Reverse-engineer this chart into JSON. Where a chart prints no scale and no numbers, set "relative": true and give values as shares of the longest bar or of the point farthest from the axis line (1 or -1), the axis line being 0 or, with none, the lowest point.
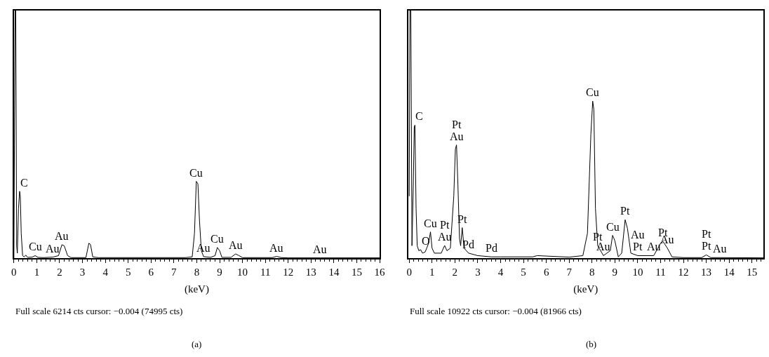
{
  "chart_data": [
    {
      "type": "line",
      "relative": true,
      "xlabel": "(keV)",
      "xlim": [
        0,
        16
      ],
      "xticks": [
        0,
        1,
        2,
        3,
        4,
        5,
        6,
        7,
        8,
        9,
        10,
        11,
        12,
        13,
        14,
        15,
        16
      ],
      "tick_labels": "x",
      "marker": "none",
      "line_style": "solid",
      "series": [
        {
          "color": "#000000",
          "x": [
            0.0,
            0.05,
            0.08,
            0.12,
            0.15,
            0.2,
            0.25,
            0.28,
            0.32,
            0.38,
            0.45,
            0.52,
            0.6,
            0.8,
            0.93,
            1.05,
            1.3,
            1.7,
            1.95,
            2.1,
            2.2,
            2.35,
            2.5,
            3.15,
            3.28,
            3.35,
            3.45,
            3.6,
            3.7,
            7.5,
            7.8,
            7.9,
            7.98,
            8.05,
            8.12,
            8.2,
            8.3,
            8.6,
            8.8,
            8.9,
            9.0,
            9.1,
            9.5,
            9.7,
            9.85,
            10.0,
            11.3,
            11.5,
            11.7,
            12.0,
            13.4,
            16.0
          ],
          "values": [
            0,
            1,
            1,
            0.05,
            0.02,
            0.2,
            0.27,
            0.25,
            0.1,
            0.01,
            0.005,
            0.012,
            0.003,
            0.004,
            0.01,
            0.003,
            0.002,
            0.004,
            0.01,
            0.054,
            0.05,
            0.01,
            0.002,
            0.002,
            0.06,
            0.055,
            0.005,
            0.003,
            0.002,
            0.002,
            0.005,
            0.1,
            0.31,
            0.3,
            0.15,
            0.03,
            0.006,
            0.003,
            0.01,
            0.043,
            0.03,
            0.003,
            0.003,
            0.017,
            0.01,
            0.002,
            0.002,
            0.007,
            0.002,
            0.001,
            0.001,
            0.001
          ]
        }
      ],
      "annotations": [
        {
          "text": "C",
          "x": 0.25,
          "y": 0.27
        },
        {
          "text": "Cu",
          "x": 0.93,
          "y": 0.01
        },
        {
          "text": "Au",
          "x": 1.7,
          "y": 0.004
        },
        {
          "text": "Au",
          "x": 2.1,
          "y": 0.054
        },
        {
          "text": "Cu",
          "x": 7.98,
          "y": 0.31
        },
        {
          "text": "Au",
          "x": 8.3,
          "y": 0.006
        },
        {
          "text": "Cu",
          "x": 8.9,
          "y": 0.043
        },
        {
          "text": "Au",
          "x": 9.7,
          "y": 0.017
        },
        {
          "text": "Au",
          "x": 11.5,
          "y": 0.007
        },
        {
          "text": "Au",
          "x": 13.4,
          "y": 0.001
        },
        "Full scale 6214 cts cursor: −0.004 (74995 cts)",
        "(a)"
      ]
    },
    {
      "type": "line",
      "relative": true,
      "xlabel": "(keV)",
      "xlim": [
        -0.05,
        15.5
      ],
      "xticks": [
        0,
        1,
        2,
        3,
        4,
        5,
        6,
        7,
        8,
        9,
        10,
        11,
        12,
        13,
        14,
        15
      ],
      "tick_labels": "x",
      "marker": "none",
      "line_style": "solid",
      "series": [
        {
          "color": "#000000",
          "x": [
            0,
            0.03,
            0.07,
            0.12,
            0.18,
            0.22,
            0.25,
            0.3,
            0.35,
            0.42,
            0.5,
            0.58,
            0.7,
            0.85,
            0.93,
            1.0,
            1.1,
            1.4,
            1.55,
            1.65,
            1.8,
            1.95,
            2.02,
            2.07,
            2.13,
            2.2,
            2.25,
            2.32,
            2.4,
            2.6,
            3.0,
            3.6,
            4.0,
            5.4,
            5.6,
            7.0,
            7.6,
            7.8,
            7.95,
            8.03,
            8.08,
            8.15,
            8.25,
            8.5,
            8.8,
            8.9,
            9.0,
            9.15,
            9.3,
            9.45,
            9.55,
            9.7,
            10.0,
            10.4,
            10.7,
            11.0,
            11.1,
            11.3,
            11.5,
            12.0,
            12.8,
            13.0,
            13.2,
            13.6,
            15.5
          ],
          "values": [
            0.25,
            1,
            1,
            0.05,
            0.3,
            0.53,
            0.537,
            0.2,
            0.05,
            0.03,
            0.034,
            0.02,
            0.025,
            0.06,
            0.106,
            0.04,
            0.02,
            0.02,
            0.051,
            0.03,
            0.04,
            0.25,
            0.44,
            0.457,
            0.3,
            0.08,
            0.05,
            0.123,
            0.04,
            0.02,
            0.01,
            0.005,
            0.005,
            0.005,
            0.01,
            0.004,
            0.01,
            0.1,
            0.5,
            0.634,
            0.6,
            0.2,
            0.05,
            0.01,
            0.03,
            0.092,
            0.07,
            0.005,
            0.02,
            0.155,
            0.12,
            0.02,
            0.01,
            0.01,
            0.01,
            0.06,
            0.068,
            0.04,
            0.005,
            0.002,
            0.002,
            0.013,
            0.002,
            0.002,
            0.001
          ]
        }
      ],
      "annotations": [
        {
          "text": "C",
          "x": 0.25,
          "y": 0.537
        },
        {
          "text": "Au",
          "x": 2.07,
          "y": 0.457
        },
        {
          "text": "Pt",
          "x": 2.07,
          "y": 0.457
        },
        {
          "text": "Cu",
          "x": 0.93,
          "y": 0.106
        },
        {
          "text": "O",
          "x": 0.5,
          "y": 0.034
        },
        {
          "text": "Au",
          "x": 1.55,
          "y": 0.051
        },
        {
          "text": "Pt",
          "x": 1.55,
          "y": 0.051
        },
        {
          "text": "Pt",
          "x": 2.32,
          "y": 0.123
        },
        {
          "text": "Pd",
          "x": 2.6,
          "y": 0.02
        },
        {
          "text": "Pd",
          "x": 3.6,
          "y": 0.005
        },
        {
          "text": "Cu",
          "x": 8.03,
          "y": 0.634
        },
        {
          "text": "Pt",
          "x": 8.25,
          "y": 0.05
        },
        {
          "text": "Au",
          "x": 8.5,
          "y": 0.01
        },
        {
          "text": "Cu",
          "x": 8.9,
          "y": 0.092
        },
        {
          "text": "Pt",
          "x": 9.45,
          "y": 0.155
        },
        {
          "text": "Pt",
          "x": 10.0,
          "y": 0.01
        },
        {
          "text": "Au",
          "x": 10.0,
          "y": 0.01
        },
        {
          "text": "Au",
          "x": 10.7,
          "y": 0.01
        },
        {
          "text": "Pt",
          "x": 11.1,
          "y": 0.068
        },
        {
          "text": "Au",
          "x": 11.3,
          "y": 0.04
        },
        {
          "text": "Pt",
          "x": 13.0,
          "y": 0.013
        },
        {
          "text": "Pt",
          "x": 13.0,
          "y": 0.013
        },
        {
          "text": "Au",
          "x": 13.6,
          "y": 0.002
        },
        "Full scale 10922 cts cursor: −0.004 (81966 cts)",
        "(b)"
      ]
    }
  ]
}
